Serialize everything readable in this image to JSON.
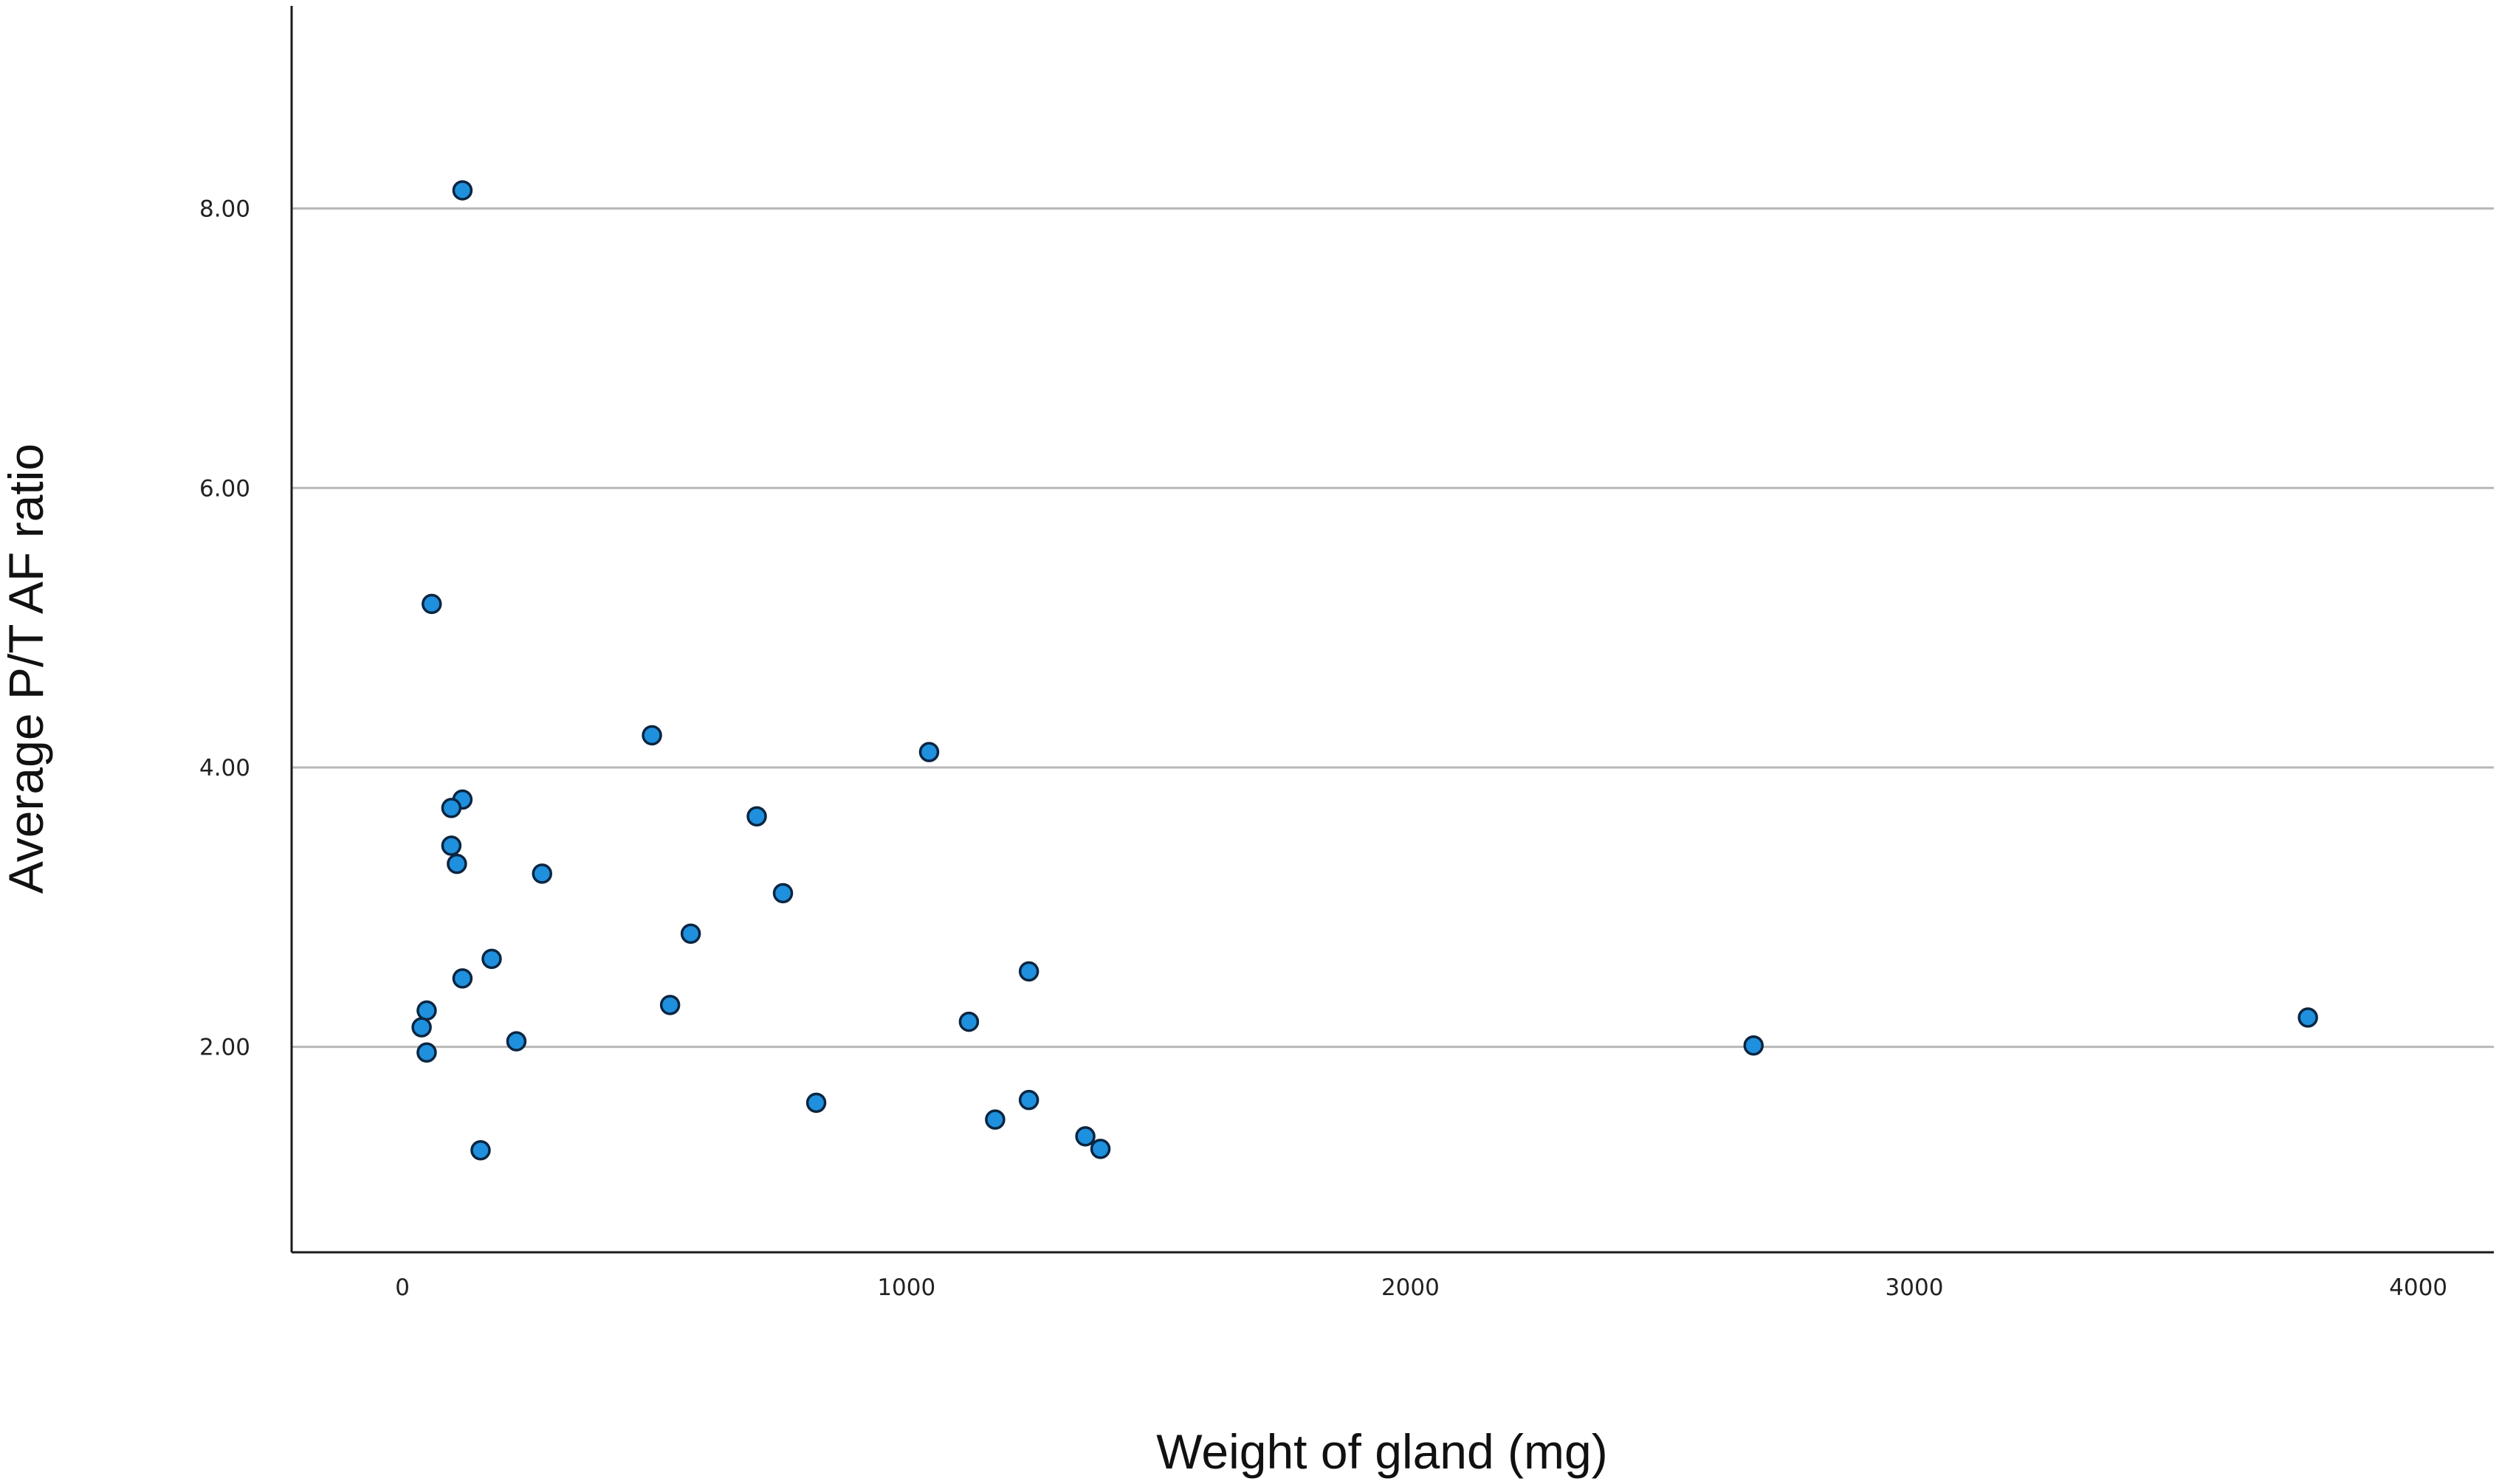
{
  "chart_data": {
    "type": "scatter",
    "title": "",
    "xlabel": "Weight of gland (mg)",
    "ylabel": "Average P/T AF ratio",
    "xlim": [
      -220,
      4150
    ],
    "ylim": [
      0.53,
      9.45
    ],
    "x_ticks": [
      0,
      1000,
      2000,
      3000,
      4000
    ],
    "x_tick_labels": [
      "0",
      "1000",
      "2000",
      "3000",
      "4000"
    ],
    "y_ticks": [
      2.0,
      4.0,
      6.0,
      8.0
    ],
    "y_tick_labels": [
      "2.00",
      "4.00",
      "6.00",
      "8.00"
    ],
    "grid": "horizontal",
    "marker_color": "#1e90dd",
    "marker_edge": "#0b2540",
    "points": [
      {
        "x": 119,
        "y": 8.13
      },
      {
        "x": 58,
        "y": 5.17
      },
      {
        "x": 495,
        "y": 4.23
      },
      {
        "x": 1045,
        "y": 4.11
      },
      {
        "x": 119,
        "y": 3.77
      },
      {
        "x": 97,
        "y": 3.71
      },
      {
        "x": 703,
        "y": 3.65
      },
      {
        "x": 97,
        "y": 3.44
      },
      {
        "x": 108,
        "y": 3.31
      },
      {
        "x": 277,
        "y": 3.24
      },
      {
        "x": 755,
        "y": 3.1
      },
      {
        "x": 572,
        "y": 2.81
      },
      {
        "x": 177,
        "y": 2.63
      },
      {
        "x": 1243,
        "y": 2.54
      },
      {
        "x": 119,
        "y": 2.49
      },
      {
        "x": 531,
        "y": 2.3
      },
      {
        "x": 48,
        "y": 2.26
      },
      {
        "x": 3781,
        "y": 2.21
      },
      {
        "x": 1124,
        "y": 2.18
      },
      {
        "x": 38,
        "y": 2.14
      },
      {
        "x": 226,
        "y": 2.04
      },
      {
        "x": 2681,
        "y": 2.01
      },
      {
        "x": 48,
        "y": 1.96
      },
      {
        "x": 1243,
        "y": 1.62
      },
      {
        "x": 821,
        "y": 1.6
      },
      {
        "x": 1176,
        "y": 1.48
      },
      {
        "x": 1355,
        "y": 1.36
      },
      {
        "x": 1385,
        "y": 1.27
      },
      {
        "x": 155,
        "y": 1.26
      }
    ]
  }
}
